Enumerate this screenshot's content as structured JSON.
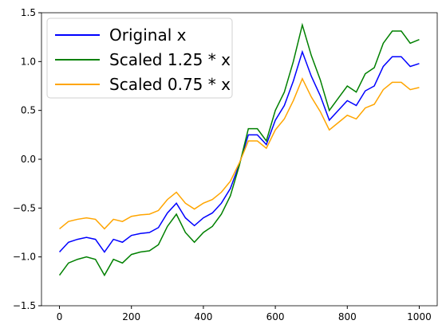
{
  "chart_data": {
    "type": "line",
    "x": [
      0,
      25,
      50,
      75,
      100,
      125,
      150,
      175,
      200,
      225,
      250,
      275,
      300,
      325,
      350,
      375,
      400,
      425,
      450,
      475,
      500,
      525,
      550,
      575,
      600,
      625,
      650,
      675,
      700,
      725,
      750,
      775,
      800,
      825,
      850,
      875,
      900,
      925,
      950,
      975,
      1000
    ],
    "series": [
      {
        "name": "Original x",
        "color": "#0000ff",
        "values": [
          -0.95,
          -0.85,
          -0.82,
          -0.8,
          -0.82,
          -0.95,
          -0.82,
          -0.85,
          -0.78,
          -0.76,
          -0.75,
          -0.7,
          -0.55,
          -0.45,
          -0.6,
          -0.68,
          -0.6,
          -0.55,
          -0.45,
          -0.3,
          -0.05,
          0.25,
          0.25,
          0.15,
          0.4,
          0.55,
          0.8,
          1.1,
          0.85,
          0.65,
          0.4,
          0.5,
          0.6,
          0.55,
          0.7,
          0.75,
          0.95,
          1.05,
          1.05,
          0.95,
          0.98
        ]
      },
      {
        "name": "Scaled 1.25 * x",
        "color": "#008000",
        "values": [
          -1.1875,
          -1.0625,
          -1.025,
          -1.0,
          -1.025,
          -1.1875,
          -1.025,
          -1.0625,
          -0.975,
          -0.95,
          -0.9375,
          -0.875,
          -0.6875,
          -0.5625,
          -0.75,
          -0.85,
          -0.75,
          -0.6875,
          -0.5625,
          -0.375,
          -0.0625,
          0.3125,
          0.3125,
          0.1875,
          0.5,
          0.6875,
          1.0,
          1.375,
          1.0625,
          0.8125,
          0.5,
          0.625,
          0.75,
          0.6875,
          0.875,
          0.9375,
          1.1875,
          1.3125,
          1.3125,
          1.1875,
          1.225
        ]
      },
      {
        "name": "Scaled 0.75 * x",
        "color": "#ffa500",
        "values": [
          -0.7125,
          -0.6375,
          -0.615,
          -0.6,
          -0.615,
          -0.7125,
          -0.615,
          -0.6375,
          -0.585,
          -0.57,
          -0.5625,
          -0.525,
          -0.4125,
          -0.3375,
          -0.45,
          -0.51,
          -0.45,
          -0.4125,
          -0.3375,
          -0.225,
          -0.0375,
          0.1875,
          0.1875,
          0.1125,
          0.3,
          0.4125,
          0.6,
          0.825,
          0.6375,
          0.4875,
          0.3,
          0.375,
          0.45,
          0.4125,
          0.525,
          0.5625,
          0.7125,
          0.7875,
          0.7875,
          0.7125,
          0.735
        ]
      }
    ],
    "xlim": [
      -50,
      1050
    ],
    "xticks": [
      0,
      200,
      400,
      600,
      800,
      1000
    ],
    "ylim": [
      -1.5,
      1.5
    ],
    "yticks": [
      {
        "value": -1.5,
        "label": "−1.5"
      },
      {
        "value": -1,
        "label": "−1.0"
      },
      {
        "value": -0.5,
        "label": "−0.5"
      },
      {
        "value": 0,
        "label": "0.0"
      },
      {
        "value": 0.5,
        "label": "0.5"
      },
      {
        "value": 1,
        "label": "1.0"
      },
      {
        "value": 1.5,
        "label": "1.5"
      }
    ],
    "legend": "upper left"
  }
}
